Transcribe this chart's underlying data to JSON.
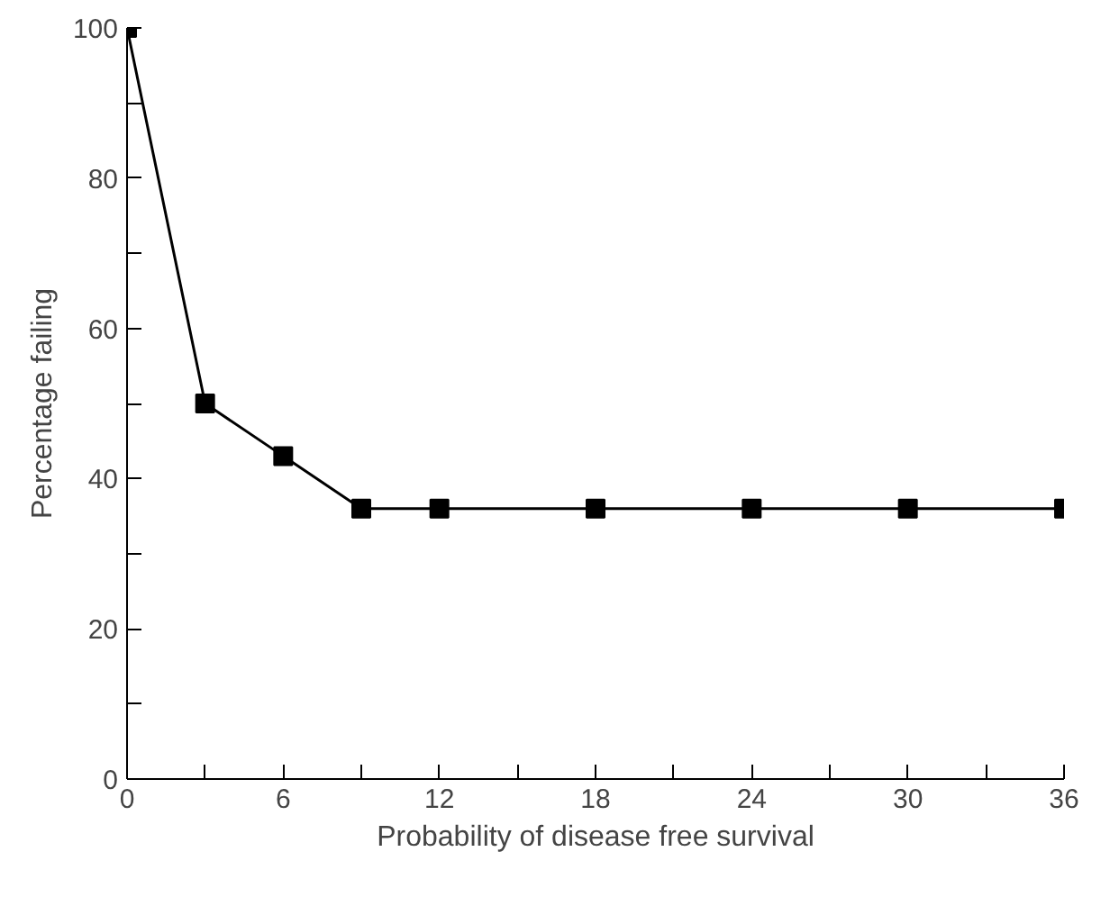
{
  "chart_data": {
    "type": "line",
    "xlabel": "Probability of disease free survival",
    "ylabel": "Percentage failing",
    "x": [
      0,
      3,
      6,
      9,
      12,
      18,
      24,
      30,
      36
    ],
    "series": [
      {
        "color": "#000000",
        "values": [
          100,
          50,
          43,
          36,
          36,
          36,
          36,
          36,
          36
        ]
      }
    ],
    "xlim": [
      0,
      36
    ],
    "ylim": [
      0,
      100
    ],
    "xticks": [
      0,
      {
        "value": 3,
        "label": null
      },
      6,
      {
        "value": 9,
        "label": null
      },
      12,
      {
        "value": 15,
        "label": null
      },
      18,
      {
        "value": 21,
        "label": null
      },
      24,
      {
        "value": 27,
        "label": null
      },
      30,
      {
        "value": 33,
        "label": null
      },
      36
    ],
    "yticks": [
      0,
      {
        "value": 10,
        "label": null
      },
      20,
      {
        "value": 30,
        "label": null
      },
      40,
      {
        "value": 50,
        "label": null
      },
      60,
      {
        "value": 70,
        "label": null
      },
      80,
      {
        "value": 90,
        "label": null
      },
      100
    ],
    "marker": "square",
    "line_style": "solid",
    "grid": false
  }
}
